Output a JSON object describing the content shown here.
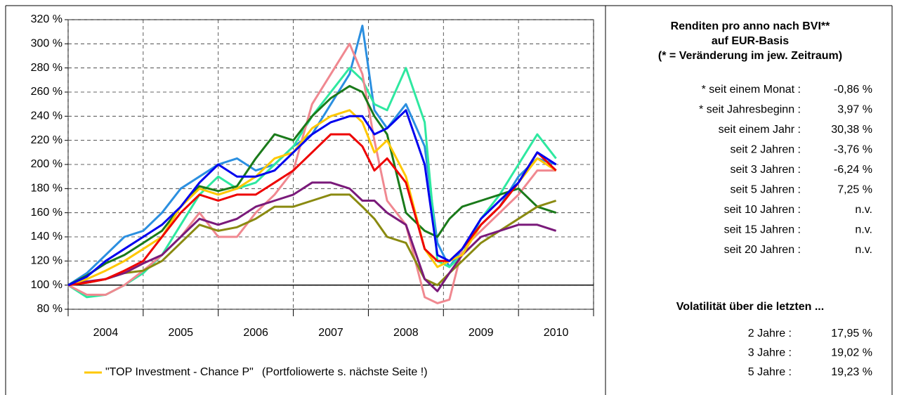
{
  "chart_data": {
    "type": "line",
    "ylim": [
      80,
      320
    ],
    "yticks": [
      {
        "value": 80,
        "label": "80 %"
      },
      {
        "value": 100,
        "label": "100 %"
      },
      {
        "value": 120,
        "label": "120 %"
      },
      {
        "value": 140,
        "label": "140 %"
      },
      {
        "value": 160,
        "label": "160 %"
      },
      {
        "value": 180,
        "label": "180 %"
      },
      {
        "value": 200,
        "label": "200 %"
      },
      {
        "value": 220,
        "label": "220 %"
      },
      {
        "value": 240,
        "label": "240 %"
      },
      {
        "value": 260,
        "label": "260 %"
      },
      {
        "value": 280,
        "label": "280 %"
      },
      {
        "value": 300,
        "label": "300 %"
      },
      {
        "value": 320,
        "label": "320 %"
      }
    ],
    "xlim": [
      2004,
      2011
    ],
    "xticks": [
      {
        "value": 2004.5,
        "label": "2004"
      },
      {
        "value": 2005.5,
        "label": "2005"
      },
      {
        "value": 2006.5,
        "label": "2006"
      },
      {
        "value": 2007.5,
        "label": "2007"
      },
      {
        "value": 2008.5,
        "label": "2008"
      },
      {
        "value": 2009.5,
        "label": "2009"
      },
      {
        "value": 2010.5,
        "label": "2010"
      }
    ],
    "xgrid": [
      2004,
      2005,
      2006,
      2007,
      2008,
      2009,
      2010,
      2011
    ],
    "grid": true,
    "reference_line": 100,
    "x": [
      2004.0,
      2004.25,
      2004.5,
      2004.75,
      2005.0,
      2005.25,
      2005.5,
      2005.75,
      2006.0,
      2006.25,
      2006.5,
      2006.75,
      2007.0,
      2007.25,
      2007.5,
      2007.75,
      2007.92,
      2008.08,
      2008.25,
      2008.5,
      2008.75,
      2008.92,
      2009.08,
      2009.25,
      2009.5,
      2009.75,
      2010.0,
      2010.25,
      2010.5
    ],
    "series": [
      {
        "color": "#2b8fe0",
        "values": [
          100,
          110,
          125,
          140,
          145,
          160,
          180,
          190,
          200,
          205,
          195,
          200,
          215,
          225,
          250,
          275,
          315,
          245,
          230,
          250,
          215,
          135,
          115,
          130,
          150,
          165,
          190,
          205,
          200
        ]
      },
      {
        "color": "#2ee8a0",
        "values": [
          100,
          90,
          92,
          100,
          110,
          125,
          150,
          175,
          190,
          180,
          185,
          200,
          215,
          240,
          260,
          280,
          270,
          250,
          245,
          280,
          235,
          120,
          115,
          125,
          155,
          175,
          200,
          225,
          205
        ]
      },
      {
        "color": "#f08890",
        "values": [
          100,
          92,
          92,
          100,
          112,
          125,
          140,
          160,
          140,
          140,
          160,
          175,
          195,
          250,
          275,
          300,
          275,
          220,
          170,
          150,
          90,
          85,
          88,
          130,
          145,
          160,
          175,
          195,
          195
        ]
      },
      {
        "color": "#1a7a1a",
        "values": [
          100,
          108,
          118,
          125,
          135,
          145,
          165,
          182,
          178,
          182,
          205,
          225,
          220,
          240,
          255,
          265,
          260,
          240,
          225,
          160,
          145,
          140,
          155,
          165,
          170,
          175,
          180,
          165,
          160
        ]
      },
      {
        "color": "#8a8a10",
        "values": [
          100,
          102,
          105,
          110,
          112,
          120,
          135,
          150,
          145,
          148,
          155,
          165,
          165,
          170,
          175,
          175,
          165,
          155,
          140,
          135,
          105,
          100,
          110,
          120,
          135,
          145,
          155,
          165,
          170
        ]
      },
      {
        "color": "#7a1a7a",
        "values": [
          100,
          103,
          105,
          110,
          118,
          125,
          140,
          155,
          150,
          155,
          165,
          170,
          175,
          185,
          185,
          180,
          170,
          170,
          160,
          150,
          105,
          95,
          110,
          125,
          140,
          145,
          150,
          150,
          145
        ]
      },
      {
        "name": "\"TOP Investment - Chance P\"",
        "color": "#ffc800",
        "values": [
          100,
          105,
          112,
          120,
          130,
          140,
          165,
          180,
          175,
          180,
          190,
          205,
          210,
          230,
          240,
          245,
          235,
          210,
          220,
          190,
          130,
          115,
          120,
          125,
          150,
          165,
          185,
          205,
          195
        ]
      },
      {
        "color": "#ee0000",
        "values": [
          100,
          102,
          105,
          112,
          120,
          140,
          160,
          175,
          170,
          175,
          175,
          185,
          195,
          210,
          225,
          225,
          215,
          195,
          205,
          185,
          130,
          120,
          120,
          130,
          150,
          165,
          185,
          210,
          195
        ]
      },
      {
        "color": "#0000ee",
        "values": [
          100,
          107,
          120,
          130,
          140,
          150,
          165,
          185,
          200,
          190,
          190,
          195,
          210,
          225,
          235,
          240,
          240,
          225,
          230,
          245,
          200,
          125,
          120,
          130,
          155,
          170,
          185,
          210,
          200
        ]
      }
    ],
    "legend_note": "(Portfoliowerte s. nächste Seite !)"
  },
  "returns": {
    "title": [
      "Renditen pro anno nach BVI**",
      "auf EUR-Basis",
      "(* = Veränderung im jew. Zeitraum)"
    ],
    "rows": [
      [
        "* seit einem Monat :",
        "-0,86 %"
      ],
      [
        "* seit Jahresbeginn :",
        "3,97 %"
      ],
      [
        "seit einem Jahr :",
        "30,38 %"
      ],
      [
        "seit 2 Jahren :",
        "-3,76 %"
      ],
      [
        "seit 3 Jahren :",
        "-6,24 %"
      ],
      [
        "seit 5 Jahren :",
        "7,25 %"
      ],
      [
        "seit 10 Jahren :",
        "n.v."
      ],
      [
        "seit 15 Jahren :",
        "n.v."
      ],
      [
        "seit 20 Jahren :",
        "n.v."
      ]
    ]
  },
  "volatility": {
    "title": "Volatilität über die letzten ...",
    "rows": [
      [
        "2 Jahre :",
        "17,95 %"
      ],
      [
        "3 Jahre :",
        "19,02 %"
      ],
      [
        "5 Jahre :",
        "19,23 %"
      ]
    ]
  }
}
